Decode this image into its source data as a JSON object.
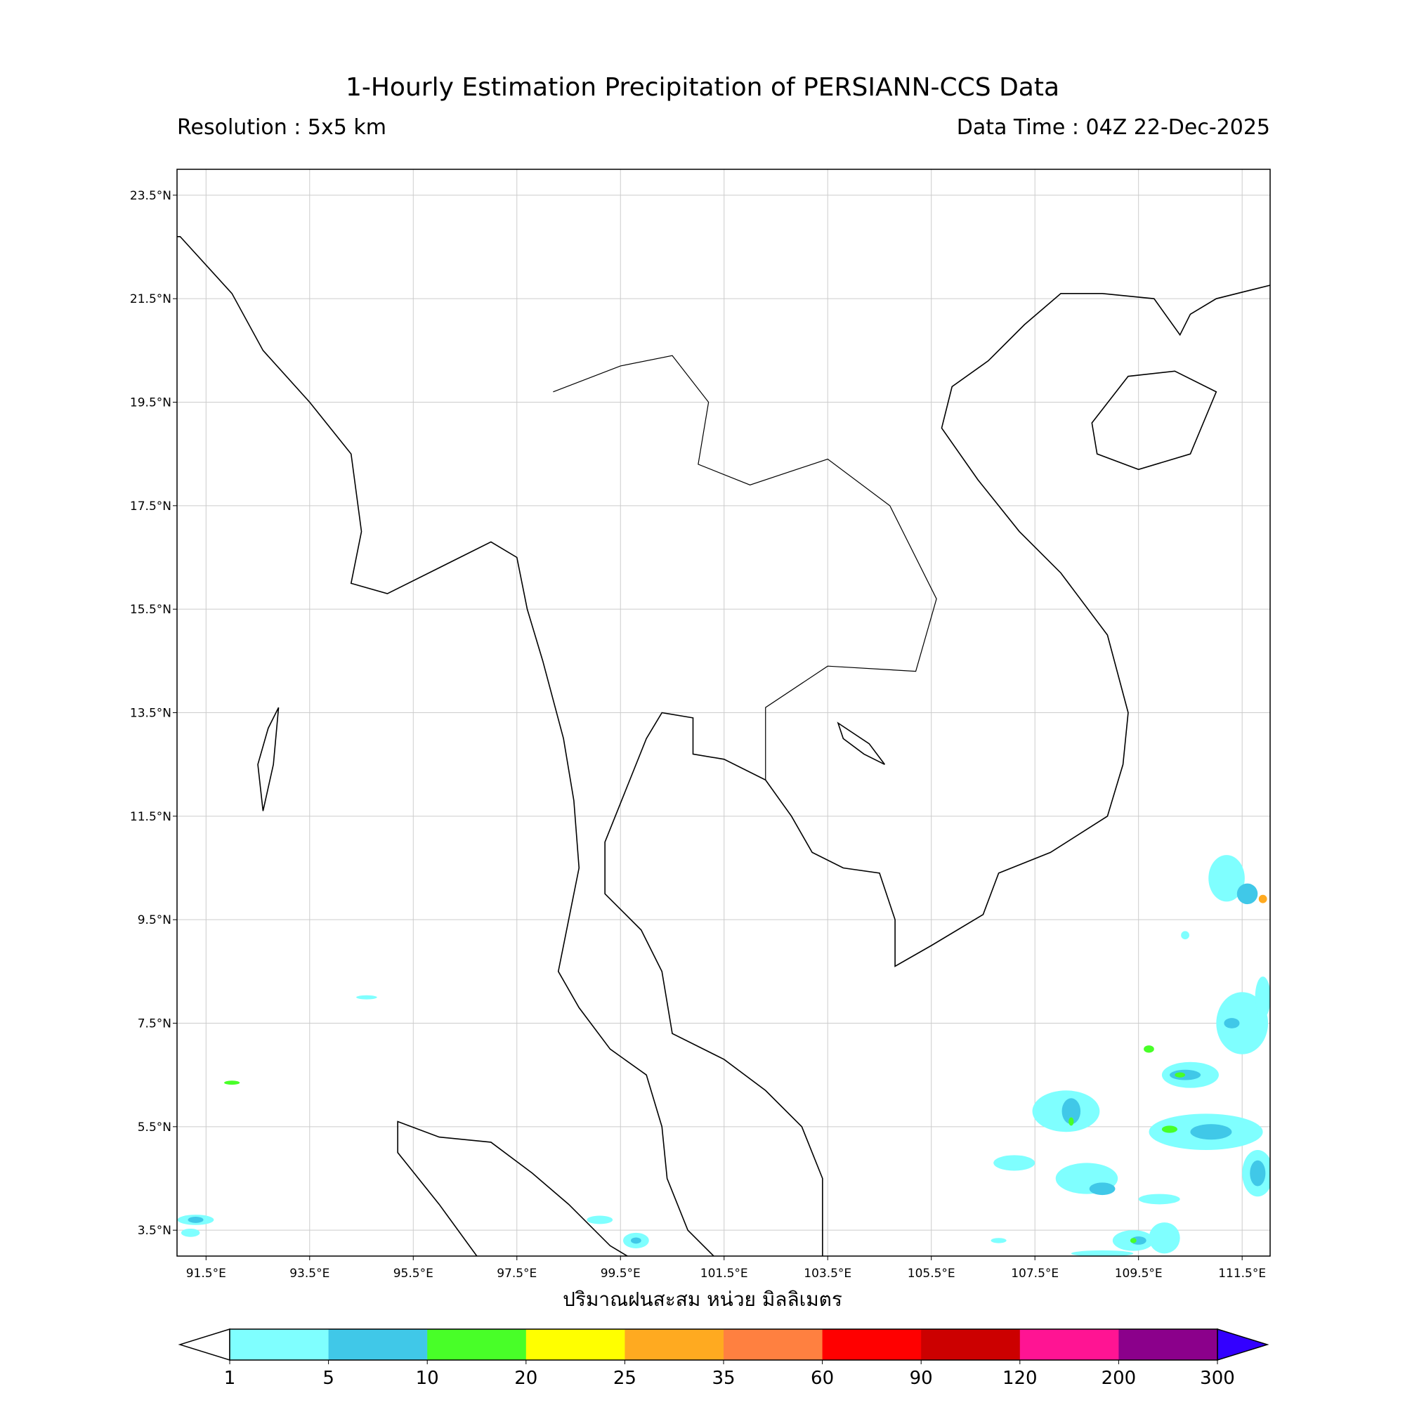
{
  "title": "1-Hourly Estimation Precipitation of PERSIANN-CCS Data",
  "resolution": "Resolution : 5x5 km",
  "data_time": "Data Time : 04Z 22-Dec-2025",
  "chart_data": {
    "type": "heatmap",
    "xlabel": "ปริมาณฝนสะสม หน่วย มิลลิเมตร",
    "lon_range": [
      90.94,
      112.04
    ],
    "lat_range": [
      3.0,
      24.0
    ],
    "grid": true,
    "x_ticks": [
      91.5,
      93.5,
      95.5,
      97.5,
      99.5,
      101.5,
      103.5,
      105.5,
      107.5,
      109.5,
      111.5
    ],
    "x_tick_labels": [
      "91.5°E",
      "93.5°E",
      "95.5°E",
      "97.5°E",
      "99.5°E",
      "101.5°E",
      "103.5°E",
      "105.5°E",
      "107.5°E",
      "109.5°E",
      "111.5°E"
    ],
    "y_ticks": [
      23.5,
      21.5,
      19.5,
      17.5,
      15.5,
      13.5,
      11.5,
      9.5,
      7.5,
      5.5,
      3.5
    ],
    "y_tick_labels": [
      "23.5°N",
      "21.5°N",
      "19.5°N",
      "17.5°N",
      "15.5°N",
      "13.5°N",
      "11.5°N",
      "9.5°N",
      "7.5°N",
      "5.5°N",
      "3.5°N"
    ],
    "colorbar": {
      "levels": [
        "1",
        "5",
        "10",
        "20",
        "25",
        "35",
        "60",
        "90",
        "120",
        "200",
        "300"
      ],
      "colors": [
        "#7fffff",
        "#40c8e8",
        "#48ff28",
        "#ffff00",
        "#ffaa20",
        "#ff8040",
        "#ff0000",
        "#cc0000",
        "#ff1493",
        "#8b008b"
      ],
      "under_color": "#ffffff",
      "over_color": "#3300ff",
      "extend": "both",
      "placement": "bottom"
    }
  }
}
